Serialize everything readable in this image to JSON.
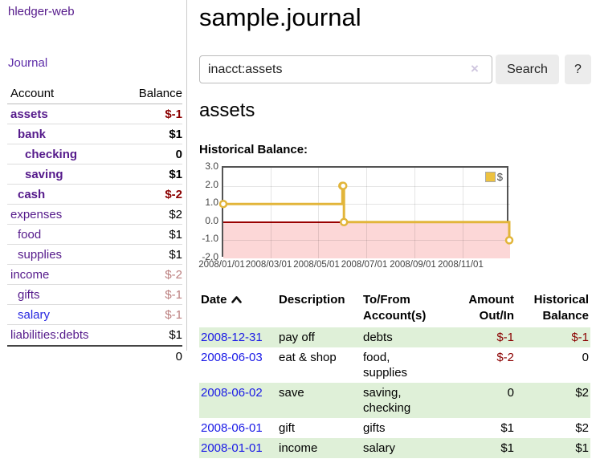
{
  "brand": "hledger-web",
  "nav": {
    "journal": "Journal"
  },
  "sidebar": {
    "headers": {
      "account": "Account",
      "balance": "Balance"
    },
    "rows": [
      {
        "name": "assets",
        "depth": 1,
        "bold": true,
        "blue": false,
        "balance": "$-1",
        "balance_style": "neg"
      },
      {
        "name": "bank",
        "depth": 2,
        "bold": true,
        "blue": false,
        "balance": "$1",
        "balance_style": "pos"
      },
      {
        "name": "checking",
        "depth": 3,
        "bold": true,
        "blue": false,
        "balance": "0",
        "balance_style": "pos"
      },
      {
        "name": "saving",
        "depth": 3,
        "bold": true,
        "blue": false,
        "balance": "$1",
        "balance_style": "pos"
      },
      {
        "name": "cash",
        "depth": 2,
        "bold": true,
        "blue": false,
        "balance": "$-2",
        "balance_style": "neg"
      },
      {
        "name": "expenses",
        "depth": 1,
        "bold": false,
        "blue": false,
        "balance": "$2",
        "balance_style": "pos"
      },
      {
        "name": "food",
        "depth": 2,
        "bold": false,
        "blue": false,
        "balance": "$1",
        "balance_style": "pos"
      },
      {
        "name": "supplies",
        "depth": 2,
        "bold": false,
        "blue": false,
        "balance": "$1",
        "balance_style": "pos"
      },
      {
        "name": "income",
        "depth": 1,
        "bold": false,
        "blue": false,
        "balance": "$-2",
        "balance_style": "negmuted"
      },
      {
        "name": "gifts",
        "depth": 2,
        "bold": false,
        "blue": false,
        "balance": "$-1",
        "balance_style": "negmuted"
      },
      {
        "name": "salary",
        "depth": 2,
        "bold": false,
        "blue": true,
        "balance": "$-1",
        "balance_style": "negmuted"
      },
      {
        "name": "liabilities:debts",
        "depth": 1,
        "bold": false,
        "blue": false,
        "balance": "$1",
        "balance_style": "pos"
      }
    ],
    "total": "0"
  },
  "header": {
    "title": "sample.journal"
  },
  "search": {
    "value": "inacct:assets",
    "clear_icon": "×",
    "button": "Search",
    "help_button": "?"
  },
  "account_page": {
    "title": "assets",
    "chart_label": "Historical Balance:"
  },
  "chart_data": {
    "type": "line",
    "style": "step",
    "title": "Historical Balance",
    "series": [
      {
        "name": "$",
        "color": "#edc240",
        "points": [
          [
            "2008-01-01",
            1.0
          ],
          [
            "2008-06-01",
            2.0
          ],
          [
            "2008-06-02",
            2.0
          ],
          [
            "2008-06-03",
            0.0
          ],
          [
            "2008-12-31",
            -1.0
          ]
        ]
      }
    ],
    "x_range": [
      "2008-01-01",
      "2009-01-01"
    ],
    "y_range": [
      -2.0,
      3.0
    ],
    "y_ticks": [
      3.0,
      2.0,
      1.0,
      0.0,
      -1.0,
      -2.0
    ],
    "y_tick_labels": [
      "3.0",
      "2.0",
      "1.0",
      "0.0",
      "-1.0",
      "-2.0"
    ],
    "x_tick_labels": [
      "2008/01/01",
      "2008/03/01",
      "2008/05/01",
      "2008/07/01",
      "2008/09/01",
      "2008/11/01"
    ],
    "legend": {
      "label": "$",
      "position": "top-right"
    },
    "grid": true,
    "negative_region_color": "#fcd7d7",
    "zero_line_color": "#990000"
  },
  "register": {
    "headers": {
      "date": "Date",
      "description": "Description",
      "account_line1": "To/From",
      "account_line2": "Account(s)",
      "amount_line1": "Amount",
      "amount_line2": "Out/In",
      "balance_line1": "Historical",
      "balance_line2": "Balance"
    },
    "rows": [
      {
        "date": "2008-12-31",
        "description": "pay off",
        "account": "debts",
        "amount": "$-1",
        "amount_neg": true,
        "balance": "$-1",
        "balance_neg": true,
        "striped": true
      },
      {
        "date": "2008-06-03",
        "description": "eat & shop",
        "account": "food, supplies",
        "amount": "$-2",
        "amount_neg": true,
        "balance": "0",
        "balance_neg": false,
        "striped": false
      },
      {
        "date": "2008-06-02",
        "description": "save",
        "account": "saving, checking",
        "amount": "0",
        "amount_neg": false,
        "balance": "$2",
        "balance_neg": false,
        "striped": true
      },
      {
        "date": "2008-06-01",
        "description": "gift",
        "account": "gifts",
        "amount": "$1",
        "amount_neg": false,
        "balance": "$2",
        "balance_neg": false,
        "striped": false
      },
      {
        "date": "2008-01-01",
        "description": "income",
        "account": "salary",
        "amount": "$1",
        "amount_neg": false,
        "balance": "$1",
        "balance_neg": false,
        "striped": true
      }
    ]
  },
  "colors": {
    "link_purple": "#551a8b",
    "link_blue": "#1a1ae6",
    "negative": "#8b0000",
    "negative_muted": "#bb7e7e",
    "row_stripe_green": "#dff0d8",
    "series_yellow": "#edc240",
    "chart_border": "#545454"
  }
}
